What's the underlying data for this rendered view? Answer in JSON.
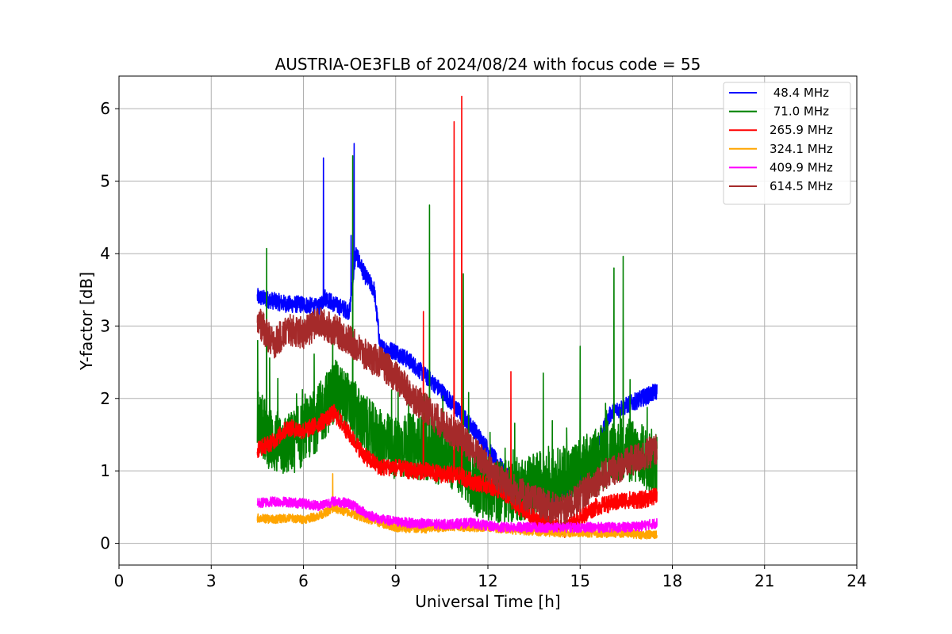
{
  "chart_data": {
    "type": "line",
    "title": "AUSTRIA-OE3FLB of 2024/08/24 with focus code = 55",
    "xlabel": "Universal Time [h]",
    "ylabel": "Y-factor [dB]",
    "xlim": [
      0,
      24
    ],
    "ylim": [
      -0.3,
      6.45
    ],
    "xticks": [
      0,
      3,
      6,
      9,
      12,
      15,
      18,
      21,
      24
    ],
    "yticks": [
      0,
      1,
      2,
      3,
      4,
      5,
      6
    ],
    "grid": true,
    "legend_position": "top-right",
    "series": [
      {
        "name": " 48.4 MHz",
        "color": "#0000ff",
        "x": [
          4.5,
          5.0,
          5.5,
          6.0,
          6.5,
          6.7,
          7.0,
          7.5,
          7.7,
          8.0,
          8.3,
          8.5,
          9.0,
          9.5,
          10.0,
          10.5,
          11.0,
          11.5,
          12.0,
          12.5,
          13.0,
          13.5,
          14.0,
          14.5,
          15.0,
          15.5,
          16.0,
          16.5,
          17.0,
          17.5
        ],
        "values": [
          3.4,
          3.35,
          3.3,
          3.3,
          3.25,
          3.4,
          3.3,
          3.2,
          4.0,
          3.7,
          3.5,
          2.7,
          2.65,
          2.5,
          2.3,
          2.1,
          1.85,
          1.6,
          1.3,
          1.0,
          0.8,
          0.65,
          0.6,
          0.7,
          0.9,
          1.3,
          1.8,
          1.9,
          2.0,
          2.1
        ],
        "spikes": [
          [
            6.65,
            5.32
          ],
          [
            7.65,
            5.52
          ],
          [
            7.55,
            4.25
          ]
        ]
      },
      {
        "name": " 71.0 MHz",
        "color": "#008000",
        "x": [
          4.5,
          5.0,
          5.5,
          6.0,
          6.5,
          7.0,
          7.5,
          8.0,
          8.5,
          9.0,
          9.5,
          10.0,
          10.5,
          11.0,
          11.5,
          12.0,
          12.5,
          13.0,
          13.5,
          14.0,
          14.5,
          15.0,
          15.5,
          16.0,
          16.5,
          17.0,
          17.5
        ],
        "values": [
          1.7,
          1.4,
          1.35,
          1.5,
          1.75,
          2.1,
          1.9,
          1.6,
          1.4,
          1.3,
          1.35,
          1.3,
          1.25,
          1.15,
          0.85,
          0.75,
          0.7,
          0.75,
          0.8,
          0.85,
          0.9,
          1.0,
          1.15,
          1.25,
          1.3,
          1.2,
          1.1
        ],
        "spikes": [
          [
            4.8,
            4.07
          ],
          [
            7.6,
            5.35
          ],
          [
            10.1,
            4.67
          ],
          [
            11.2,
            3.72
          ],
          [
            16.1,
            3.8
          ],
          [
            16.4,
            3.96
          ],
          [
            15.0,
            2.72
          ],
          [
            13.8,
            2.35
          ]
        ]
      },
      {
        "name": "265.9 MHz",
        "color": "#ff0000",
        "x": [
          4.5,
          5.0,
          5.5,
          6.0,
          6.5,
          7.0,
          7.5,
          8.0,
          8.5,
          9.0,
          9.5,
          10.0,
          10.5,
          11.0,
          11.5,
          12.0,
          12.5,
          13.0,
          13.5,
          14.0,
          14.5,
          15.0,
          15.5,
          16.0,
          16.5,
          17.0,
          17.5
        ],
        "values": [
          1.3,
          1.4,
          1.6,
          1.55,
          1.65,
          1.8,
          1.5,
          1.2,
          1.05,
          1.05,
          1.0,
          1.0,
          0.95,
          0.95,
          0.85,
          0.8,
          0.7,
          0.5,
          0.35,
          0.25,
          0.2,
          0.35,
          0.5,
          0.55,
          0.6,
          0.6,
          0.65
        ],
        "spikes": [
          [
            10.9,
            5.82
          ],
          [
            11.15,
            6.17
          ],
          [
            9.9,
            3.2
          ],
          [
            12.75,
            2.37
          ]
        ]
      },
      {
        "name": "324.1 MHz",
        "color": "#ffa500",
        "x": [
          4.5,
          5.0,
          5.5,
          6.0,
          6.5,
          7.0,
          7.5,
          8.0,
          8.5,
          9.0,
          9.5,
          10.0,
          10.5,
          11.0,
          11.5,
          12.0,
          12.5,
          13.0,
          13.5,
          14.0,
          14.5,
          15.0,
          15.5,
          16.0,
          16.5,
          17.0,
          17.5
        ],
        "values": [
          0.35,
          0.33,
          0.35,
          0.33,
          0.38,
          0.48,
          0.42,
          0.35,
          0.28,
          0.22,
          0.2,
          0.2,
          0.22,
          0.23,
          0.22,
          0.22,
          0.2,
          0.18,
          0.17,
          0.15,
          0.14,
          0.15,
          0.14,
          0.14,
          0.14,
          0.12,
          0.12
        ],
        "spikes": [
          [
            6.95,
            0.96
          ]
        ]
      },
      {
        "name": "409.9 MHz",
        "color": "#ff00ff",
        "x": [
          4.5,
          5.0,
          5.5,
          6.0,
          6.5,
          7.0,
          7.5,
          8.0,
          8.5,
          9.0,
          9.5,
          10.0,
          10.5,
          11.0,
          11.5,
          12.0,
          12.5,
          13.0,
          13.5,
          14.0,
          14.5,
          15.0,
          15.5,
          16.0,
          16.5,
          17.0,
          17.5
        ],
        "values": [
          0.55,
          0.58,
          0.57,
          0.55,
          0.52,
          0.58,
          0.55,
          0.42,
          0.33,
          0.3,
          0.28,
          0.27,
          0.26,
          0.27,
          0.28,
          0.24,
          0.22,
          0.22,
          0.22,
          0.22,
          0.22,
          0.22,
          0.22,
          0.22,
          0.22,
          0.24,
          0.28
        ],
        "spikes": []
      },
      {
        "name": "614.5 MHz",
        "color": "#a52a2a",
        "x": [
          4.5,
          5.0,
          5.5,
          6.0,
          6.5,
          7.0,
          7.5,
          8.0,
          8.5,
          9.0,
          9.5,
          10.0,
          10.5,
          11.0,
          11.5,
          12.0,
          12.5,
          13.0,
          13.5,
          14.0,
          14.5,
          15.0,
          15.5,
          16.0,
          16.5,
          17.0,
          17.5
        ],
        "values": [
          3.1,
          2.75,
          2.95,
          2.9,
          3.05,
          2.95,
          2.8,
          2.6,
          2.5,
          2.3,
          2.05,
          1.85,
          1.65,
          1.5,
          1.3,
          1.05,
          0.85,
          0.7,
          0.6,
          0.5,
          0.45,
          0.65,
          0.85,
          1.0,
          1.1,
          1.2,
          1.3
        ],
        "spikes": []
      }
    ]
  }
}
